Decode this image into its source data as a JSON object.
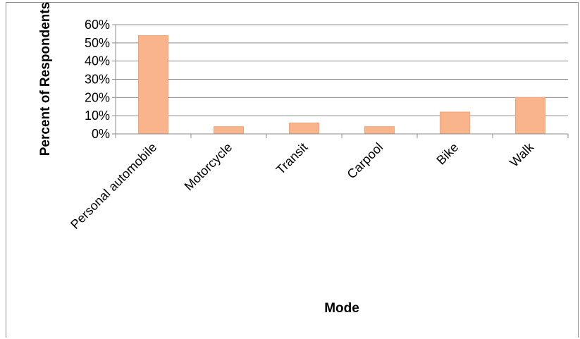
{
  "chart_data": {
    "type": "bar",
    "title": "",
    "xlabel": "Mode",
    "ylabel": "Percent of Respondents",
    "categories": [
      "Personal automobile",
      "Motorcycle",
      "Transit",
      "Carpool",
      "Bike",
      "Walk"
    ],
    "values": [
      54,
      4,
      6,
      4,
      12,
      20
    ],
    "value_unit": "%",
    "ylim": [
      0,
      60
    ],
    "yticks": [
      "0%",
      "10%",
      "20%",
      "30%",
      "40%",
      "50%",
      "60%"
    ],
    "grid": true,
    "legend": "none",
    "bar_color": "#f9b48c",
    "bar_border_color": "#f4a276"
  }
}
